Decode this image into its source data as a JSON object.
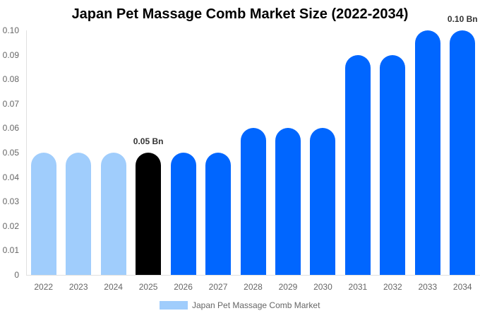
{
  "chart_data": {
    "type": "bar",
    "title": "Japan Pet Massage Comb Market Size (2022-2034)",
    "xlabel": "",
    "ylabel": "",
    "ylim": [
      0,
      0.1
    ],
    "yticks": [
      "0",
      "0.01",
      "0.02",
      "0.03",
      "0.04",
      "0.05",
      "0.06",
      "0.07",
      "0.08",
      "0.09",
      "0.10"
    ],
    "categories": [
      "2022",
      "2023",
      "2024",
      "2025",
      "2026",
      "2027",
      "2028",
      "2029",
      "2030",
      "2031",
      "2032",
      "2033",
      "2034"
    ],
    "series": [
      {
        "name": "Japan Pet Massage Comb Market",
        "values": [
          0.05,
          0.05,
          0.05,
          0.05,
          0.05,
          0.05,
          0.06,
          0.06,
          0.06,
          0.09,
          0.09,
          0.1,
          0.1
        ]
      }
    ],
    "bar_colors": [
      "#a0cdfc",
      "#a0cdfc",
      "#a0cdfc",
      "#000000",
      "#0066ff",
      "#0066ff",
      "#0066ff",
      "#0066ff",
      "#0066ff",
      "#0066ff",
      "#0066ff",
      "#0066ff",
      "#0066ff"
    ],
    "annotations": [
      {
        "category": "2025",
        "text": "0.05 Bn"
      },
      {
        "category": "2034",
        "text": "0.10 Bn"
      }
    ],
    "legend": {
      "position": "bottom",
      "entries": [
        "Japan Pet Massage Comb Market"
      ],
      "swatch_color": "#a0cdfc"
    },
    "grid": false
  }
}
